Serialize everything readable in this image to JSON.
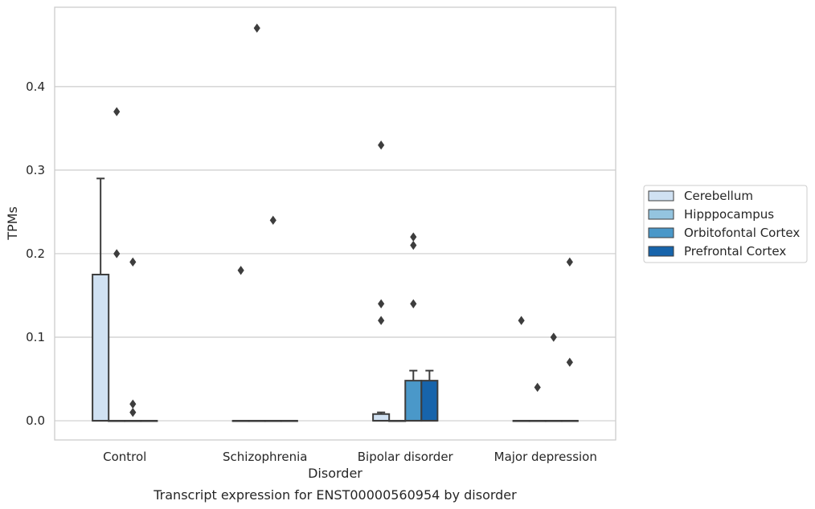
{
  "chart_data": {
    "type": "box",
    "title": "Transcript expression for ENST00000560954 by disorder",
    "xlabel": "Disorder",
    "ylabel": "TPMs",
    "ylim": [
      -0.023,
      0.495
    ],
    "yticks": [
      0.0,
      0.1,
      0.2,
      0.3,
      0.4
    ],
    "ytick_labels": [
      "0.0",
      "0.1",
      "0.2",
      "0.3",
      "0.4"
    ],
    "grid": "horizontal",
    "legend_placement": "right",
    "categories": [
      "Control",
      "Schizophrenia",
      "Bipolar disorder",
      "Major depression"
    ],
    "series": [
      {
        "name": "Cerebellum",
        "color": "#d0e1f2",
        "boxes": [
          {
            "q1": 0.0,
            "median": 0.0,
            "q3": 0.175,
            "whisker_low": 0.0,
            "whisker_high": 0.29,
            "outliers": []
          },
          {
            "q1": 0.0,
            "median": 0.0,
            "q3": 0.0,
            "whisker_low": 0.0,
            "whisker_high": 0.0,
            "outliers": [
              0.18
            ]
          },
          {
            "q1": 0.0,
            "median": 0.0,
            "q3": 0.008,
            "whisker_low": 0.0,
            "whisker_high": 0.01,
            "outliers": [
              0.12,
              0.14,
              0.33
            ]
          },
          {
            "q1": 0.0,
            "median": 0.0,
            "q3": 0.0,
            "whisker_low": 0.0,
            "whisker_high": 0.0,
            "outliers": [
              0.12
            ]
          }
        ]
      },
      {
        "name": "Hipppocampus",
        "color": "#94c4df",
        "boxes": [
          {
            "q1": 0.0,
            "median": 0.0,
            "q3": 0.0,
            "whisker_low": 0.0,
            "whisker_high": 0.0,
            "outliers": [
              0.2,
              0.37
            ]
          },
          {
            "q1": 0.0,
            "median": 0.0,
            "q3": 0.0,
            "whisker_low": 0.0,
            "whisker_high": 0.0,
            "outliers": [
              0.47
            ]
          },
          {
            "q1": 0.0,
            "median": 0.0,
            "q3": 0.0,
            "whisker_low": 0.0,
            "whisker_high": 0.0,
            "outliers": []
          },
          {
            "q1": 0.0,
            "median": 0.0,
            "q3": 0.0,
            "whisker_low": 0.0,
            "whisker_high": 0.0,
            "outliers": [
              0.04
            ]
          }
        ]
      },
      {
        "name": "Orbitofontal Cortex",
        "color": "#4a98c9",
        "boxes": [
          {
            "q1": 0.0,
            "median": 0.0,
            "q3": 0.0,
            "whisker_low": 0.0,
            "whisker_high": 0.0,
            "outliers": [
              0.01,
              0.02,
              0.19
            ]
          },
          {
            "q1": 0.0,
            "median": 0.0,
            "q3": 0.0,
            "whisker_low": 0.0,
            "whisker_high": 0.0,
            "outliers": [
              0.24
            ]
          },
          {
            "q1": 0.0,
            "median": 0.0,
            "q3": 0.048,
            "whisker_low": 0.0,
            "whisker_high": 0.06,
            "outliers": [
              0.14,
              0.21,
              0.22
            ]
          },
          {
            "q1": 0.0,
            "median": 0.0,
            "q3": 0.0,
            "whisker_low": 0.0,
            "whisker_high": 0.0,
            "outliers": [
              0.1
            ]
          }
        ]
      },
      {
        "name": "Prefrontal Cortex",
        "color": "#1764ab",
        "boxes": [
          {
            "q1": 0.0,
            "median": 0.0,
            "q3": 0.0,
            "whisker_low": 0.0,
            "whisker_high": 0.0,
            "outliers": []
          },
          {
            "q1": 0.0,
            "median": 0.0,
            "q3": 0.0,
            "whisker_low": 0.0,
            "whisker_high": 0.0,
            "outliers": []
          },
          {
            "q1": 0.0,
            "median": 0.0,
            "q3": 0.048,
            "whisker_low": 0.0,
            "whisker_high": 0.06,
            "outliers": []
          },
          {
            "q1": 0.0,
            "median": 0.0,
            "q3": 0.0,
            "whisker_low": 0.0,
            "whisker_high": 0.0,
            "outliers": [
              0.07,
              0.19
            ]
          }
        ]
      }
    ]
  }
}
